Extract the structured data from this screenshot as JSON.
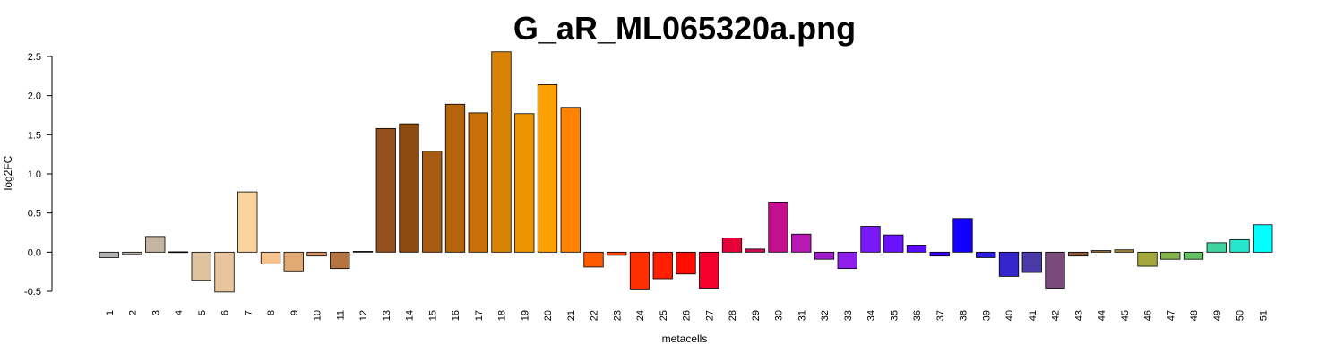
{
  "chart_data": {
    "type": "bar",
    "title": "G_aR_ML065320a.png",
    "xlabel": "metacells",
    "ylabel": "log2FC",
    "ylim": [
      -0.5,
      2.5
    ],
    "yticks": [
      "-0.5",
      "0.0",
      "0.5",
      "1.0",
      "1.5",
      "2.0",
      "2.5"
    ],
    "categories": [
      "1",
      "2",
      "3",
      "4",
      "5",
      "6",
      "7",
      "8",
      "9",
      "10",
      "11",
      "12",
      "13",
      "14",
      "15",
      "16",
      "17",
      "18",
      "19",
      "20",
      "21",
      "22",
      "23",
      "24",
      "25",
      "26",
      "27",
      "28",
      "29",
      "30",
      "31",
      "32",
      "33",
      "34",
      "35",
      "36",
      "37",
      "38",
      "39",
      "40",
      "41",
      "42",
      "43",
      "44",
      "45",
      "46",
      "47",
      "48",
      "49",
      "50",
      "51"
    ],
    "values": [
      -0.07,
      -0.03,
      0.2,
      0.005,
      -0.36,
      -0.51,
      0.77,
      -0.15,
      -0.24,
      -0.05,
      -0.21,
      0.01,
      1.58,
      1.64,
      1.29,
      1.89,
      1.78,
      2.56,
      1.77,
      2.14,
      1.85,
      -0.19,
      -0.04,
      -0.47,
      -0.34,
      -0.28,
      -0.46,
      0.18,
      0.04,
      0.64,
      0.23,
      -0.09,
      -0.21,
      0.33,
      0.22,
      0.09,
      -0.05,
      0.43,
      -0.07,
      -0.31,
      -0.26,
      -0.46,
      -0.05,
      0.02,
      0.03,
      -0.18,
      -0.09,
      -0.09,
      0.12,
      0.16,
      0.35
    ],
    "colors": [
      "#b3b3b3",
      "#bcb4a8",
      "#c5b49f",
      "#cfb496",
      "#dec19e",
      "#e9c59e",
      "#fbd39c",
      "#f5c18d",
      "#e0aa72",
      "#d4956a",
      "#b47543",
      "#9e6439",
      "#94501e",
      "#8d4b10",
      "#a75a12",
      "#b6640b",
      "#c76f09",
      "#d98305",
      "#ed9402",
      "#fda100",
      "#ff8300",
      "#ff5a00",
      "#ff4400",
      "#ff3000",
      "#ff1e00",
      "#ff0d00",
      "#f4002c",
      "#e5003a",
      "#d40a56",
      "#c4108f",
      "#b818b5",
      "#a21ccd",
      "#8e1eea",
      "#7a18f7",
      "#6a12fd",
      "#5a0bff",
      "#3a00ff",
      "#1400ff",
      "#2a1ce0",
      "#3424cc",
      "#4a3aa8",
      "#7a4a7a",
      "#8e5a3e",
      "#a07030",
      "#a88a3a",
      "#a4a83a",
      "#82b44a",
      "#64c064",
      "#3ed4a0",
      "#26e6cc",
      "#00ffff"
    ]
  }
}
